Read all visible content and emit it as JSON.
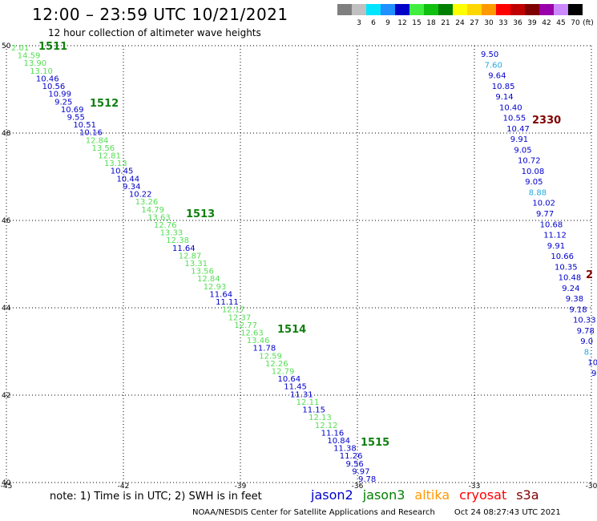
{
  "title": "12:00 – 23:59 UTC 10/21/2021",
  "subtitle": "12 hour collection of altimeter wave heights",
  "colorbar": {
    "unit": "(ft)",
    "entries": [
      {
        "label": "",
        "color": "#7f7f7f"
      },
      {
        "label": "3",
        "color": "#c0c0c0"
      },
      {
        "label": "6",
        "color": "#00e5ff"
      },
      {
        "label": "9",
        "color": "#1e90ff"
      },
      {
        "label": "12",
        "color": "#0000c8"
      },
      {
        "label": "15",
        "color": "#40ee40"
      },
      {
        "label": "18",
        "color": "#10c010"
      },
      {
        "label": "21",
        "color": "#008000"
      },
      {
        "label": "24",
        "color": "#ffff00"
      },
      {
        "label": "27",
        "color": "#ffd700"
      },
      {
        "label": "30",
        "color": "#ff9900"
      },
      {
        "label": "33",
        "color": "#ff0000"
      },
      {
        "label": "36",
        "color": "#c00000"
      },
      {
        "label": "39",
        "color": "#800000"
      },
      {
        "label": "42",
        "color": "#9900aa"
      },
      {
        "label": "45",
        "color": "#cc88ff"
      },
      {
        "label": "70",
        "color": "#000000"
      }
    ]
  },
  "map": {
    "lon_range": [
      -45,
      -30
    ],
    "lat_range": [
      40,
      50
    ],
    "lon_ticks": [
      "-45",
      "-42",
      "-39",
      "-36",
      "-33",
      "-30"
    ],
    "lat_ticks": [
      "50",
      "48",
      "46",
      "44",
      "42",
      "40"
    ],
    "grid": "dotted"
  },
  "category_colors": {
    "blue": "#0000cc",
    "light_green": "#55dd55",
    "cyan": "#22aadd",
    "pass_green": "#108010",
    "dark_red": "#800000"
  },
  "passes": [
    {
      "label": "1511",
      "color": "#108010"
    },
    {
      "label": "1512",
      "color": "#108010"
    },
    {
      "label": "1513",
      "color": "#108010"
    },
    {
      "label": "1514",
      "color": "#108010"
    },
    {
      "label": "1515",
      "color": "#108010"
    },
    {
      "label": "2330",
      "color": "#800000"
    },
    {
      "label": "2",
      "color": "#800000"
    }
  ],
  "track_a": {
    "values": [
      {
        "v": "2.01",
        "c": "light_green"
      },
      {
        "v": "14.59",
        "c": "light_green"
      },
      {
        "v": "13.90",
        "c": "light_green"
      },
      {
        "v": "13.10",
        "c": "light_green"
      },
      {
        "v": "10.46",
        "c": "blue"
      },
      {
        "v": "10.56",
        "c": "blue"
      },
      {
        "v": "10.99",
        "c": "blue"
      },
      {
        "v": "9.25",
        "c": "blue"
      },
      {
        "v": "10.69",
        "c": "blue"
      },
      {
        "v": "9.55",
        "c": "blue"
      },
      {
        "v": "10.51",
        "c": "blue"
      },
      {
        "v": "10.16",
        "c": "blue"
      },
      {
        "v": "12.84",
        "c": "light_green"
      },
      {
        "v": "13.56",
        "c": "light_green"
      },
      {
        "v": "12.81",
        "c": "light_green"
      },
      {
        "v": "13.13",
        "c": "light_green"
      },
      {
        "v": "10.45",
        "c": "blue"
      },
      {
        "v": "10.44",
        "c": "blue"
      },
      {
        "v": "9.34",
        "c": "blue"
      },
      {
        "v": "10.22",
        "c": "blue"
      },
      {
        "v": "13.26",
        "c": "light_green"
      },
      {
        "v": "14.79",
        "c": "light_green"
      },
      {
        "v": "13.63",
        "c": "light_green"
      },
      {
        "v": "12.76",
        "c": "light_green"
      },
      {
        "v": "13.33",
        "c": "light_green"
      },
      {
        "v": "12.38",
        "c": "light_green"
      },
      {
        "v": "11.64",
        "c": "blue"
      },
      {
        "v": "12.87",
        "c": "light_green"
      },
      {
        "v": "13.31",
        "c": "light_green"
      },
      {
        "v": "13.56",
        "c": "light_green"
      },
      {
        "v": "12.84",
        "c": "light_green"
      },
      {
        "v": "12.93",
        "c": "light_green"
      },
      {
        "v": "11.64",
        "c": "blue"
      },
      {
        "v": "11.11",
        "c": "blue"
      },
      {
        "v": "12.17",
        "c": "light_green"
      },
      {
        "v": "12.37",
        "c": "light_green"
      },
      {
        "v": "12.77",
        "c": "light_green"
      },
      {
        "v": "12.63",
        "c": "light_green"
      },
      {
        "v": "13.46",
        "c": "light_green"
      },
      {
        "v": "11.78",
        "c": "blue"
      },
      {
        "v": "12.59",
        "c": "light_green"
      },
      {
        "v": "12.26",
        "c": "light_green"
      },
      {
        "v": "12.79",
        "c": "light_green"
      },
      {
        "v": "10.64",
        "c": "blue"
      },
      {
        "v": "11.45",
        "c": "blue"
      },
      {
        "v": "11.31",
        "c": "blue"
      },
      {
        "v": "12.11",
        "c": "light_green"
      },
      {
        "v": "11.15",
        "c": "blue"
      },
      {
        "v": "12.13",
        "c": "light_green"
      },
      {
        "v": "12.12",
        "c": "light_green"
      },
      {
        "v": "11.16",
        "c": "blue"
      },
      {
        "v": "10.84",
        "c": "blue"
      },
      {
        "v": "11.38",
        "c": "blue"
      },
      {
        "v": "11.26",
        "c": "blue"
      },
      {
        "v": "9.56",
        "c": "blue"
      },
      {
        "v": "9.97",
        "c": "blue"
      },
      {
        "v": "9.78",
        "c": "blue"
      }
    ]
  },
  "track_b": {
    "values": [
      {
        "v": "9.50",
        "c": "blue"
      },
      {
        "v": "7.60",
        "c": "cyan"
      },
      {
        "v": "9.64",
        "c": "blue"
      },
      {
        "v": "10.85",
        "c": "blue"
      },
      {
        "v": "9.14",
        "c": "blue"
      },
      {
        "v": "10.40",
        "c": "blue"
      },
      {
        "v": "10.55",
        "c": "blue"
      },
      {
        "v": "10.47",
        "c": "blue"
      },
      {
        "v": "9.91",
        "c": "blue"
      },
      {
        "v": "9.05",
        "c": "blue"
      },
      {
        "v": "10.72",
        "c": "blue"
      },
      {
        "v": "10.08",
        "c": "blue"
      },
      {
        "v": "9.05",
        "c": "blue"
      },
      {
        "v": "8.88",
        "c": "cyan"
      },
      {
        "v": "10.02",
        "c": "blue"
      },
      {
        "v": "9.77",
        "c": "blue"
      },
      {
        "v": "10.68",
        "c": "blue"
      },
      {
        "v": "11.12",
        "c": "blue"
      },
      {
        "v": "9.91",
        "c": "blue"
      },
      {
        "v": "10.66",
        "c": "blue"
      },
      {
        "v": "10.35",
        "c": "blue"
      },
      {
        "v": "10.48",
        "c": "blue"
      },
      {
        "v": "9.24",
        "c": "blue"
      },
      {
        "v": "9.38",
        "c": "blue"
      },
      {
        "v": "9.18",
        "c": "blue"
      },
      {
        "v": "10.33",
        "c": "blue"
      },
      {
        "v": "9.78",
        "c": "blue"
      },
      {
        "v": "9.0",
        "c": "blue"
      },
      {
        "v": "8.",
        "c": "cyan"
      },
      {
        "v": "10",
        "c": "blue"
      },
      {
        "v": "9",
        "c": "blue"
      }
    ]
  },
  "note": "note:  1) Time is in UTC;  2) SWH is in feet",
  "legend": [
    {
      "label": "jason2",
      "color": "#0000cc"
    },
    {
      "label": "jason3",
      "color": "#008000"
    },
    {
      "label": "altika",
      "color": "#ff9900"
    },
    {
      "label": "cryosat",
      "color": "#ff0000"
    },
    {
      "label": "s3a",
      "color": "#800000"
    }
  ],
  "footer": {
    "org": "NOAA/NESDIS Center for Satellite Applications and Research",
    "timestamp": "Oct 24 08:27:43 UTC 2021"
  }
}
